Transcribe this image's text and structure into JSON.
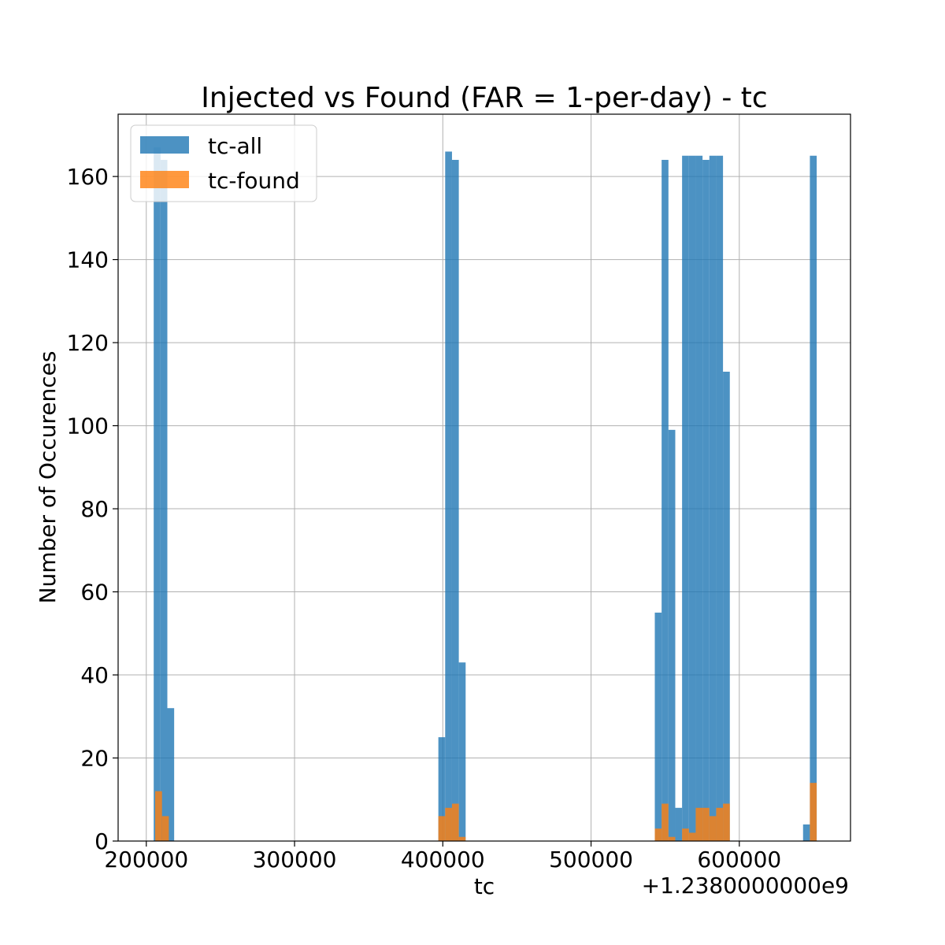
{
  "chart_data": {
    "type": "bar",
    "title": "Injected vs Found (FAR = 1-per-day) - tc",
    "xlabel": "tc",
    "ylabel": "Number of Occurences",
    "x_offset_label": "+1.2380000000e9",
    "xlim": [
      181000,
      1238675000
    ],
    "xlim_rel": [
      181000,
      675000
    ],
    "ylim": [
      0,
      175
    ],
    "x_ticks": [
      {
        "value": 200000,
        "label": "200000"
      },
      {
        "value": 300000,
        "label": "300000"
      },
      {
        "value": 400000,
        "label": "400000"
      },
      {
        "value": 500000,
        "label": "500000"
      },
      {
        "value": 600000,
        "label": "600000"
      }
    ],
    "y_ticks": [
      {
        "value": 0,
        "label": "0"
      },
      {
        "value": 20,
        "label": "20"
      },
      {
        "value": 40,
        "label": "40"
      },
      {
        "value": 60,
        "label": "60"
      },
      {
        "value": 80,
        "label": "80"
      },
      {
        "value": 100,
        "label": "100"
      },
      {
        "value": 120,
        "label": "120"
      },
      {
        "value": 140,
        "label": "140"
      },
      {
        "value": 160,
        "label": "160"
      }
    ],
    "grid": true,
    "legend_position": "top-left",
    "bin_width": 4600,
    "series": [
      {
        "name": "tc-all",
        "color": "#1f77b4",
        "bins": [
          {
            "x": 205000,
            "value": 167
          },
          {
            "x": 209600,
            "value": 164
          },
          {
            "x": 214200,
            "value": 32
          },
          {
            "x": 397000,
            "value": 25
          },
          {
            "x": 401600,
            "value": 166
          },
          {
            "x": 406200,
            "value": 164
          },
          {
            "x": 410800,
            "value": 43
          },
          {
            "x": 543000,
            "value": 55
          },
          {
            "x": 547600,
            "value": 164
          },
          {
            "x": 552200,
            "value": 99
          },
          {
            "x": 556800,
            "value": 8
          },
          {
            "x": 561400,
            "value": 165
          },
          {
            "x": 566000,
            "value": 165
          },
          {
            "x": 570600,
            "value": 165
          },
          {
            "x": 575200,
            "value": 164
          },
          {
            "x": 579800,
            "value": 165
          },
          {
            "x": 584400,
            "value": 165
          },
          {
            "x": 589000,
            "value": 113
          },
          {
            "x": 643000,
            "value": 4
          },
          {
            "x": 647600,
            "value": 165
          }
        ]
      },
      {
        "name": "tc-found",
        "color": "#ff7f0e",
        "bins": [
          {
            "x": 206000,
            "value": 12
          },
          {
            "x": 210600,
            "value": 6
          },
          {
            "x": 397000,
            "value": 6
          },
          {
            "x": 401600,
            "value": 8
          },
          {
            "x": 406200,
            "value": 9
          },
          {
            "x": 410800,
            "value": 1
          },
          {
            "x": 543000,
            "value": 3
          },
          {
            "x": 547600,
            "value": 9
          },
          {
            "x": 552200,
            "value": 1
          },
          {
            "x": 561400,
            "value": 3
          },
          {
            "x": 566000,
            "value": 2
          },
          {
            "x": 570600,
            "value": 8
          },
          {
            "x": 575200,
            "value": 8
          },
          {
            "x": 579800,
            "value": 6
          },
          {
            "x": 584400,
            "value": 8
          },
          {
            "x": 589000,
            "value": 9
          },
          {
            "x": 647600,
            "value": 14
          }
        ]
      }
    ]
  }
}
